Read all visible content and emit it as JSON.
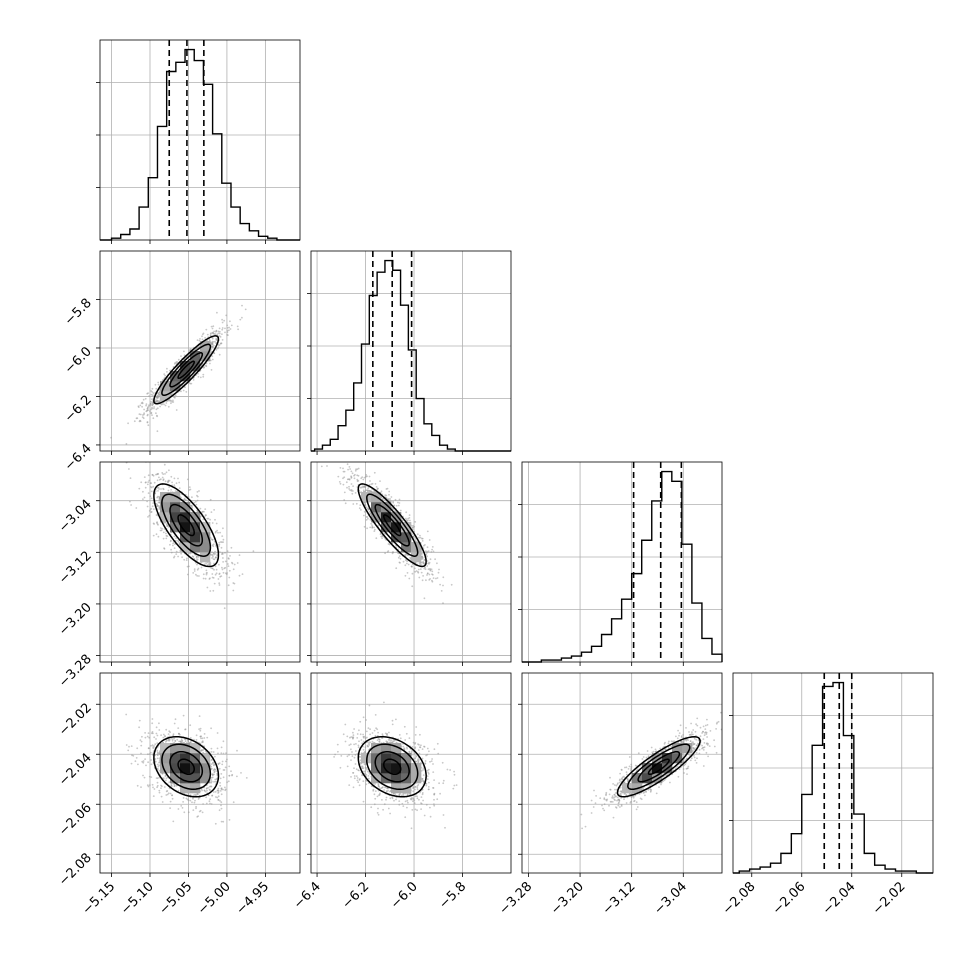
{
  "chart_data": {
    "type": "corner",
    "title": "",
    "grid": true,
    "parameters": [
      {
        "range": [
          -5.165,
          -4.905
        ],
        "ticks": [
          -5.15,
          -5.1,
          -5.05,
          -5.0,
          -4.95
        ],
        "tick_labels": [
          "−5.15",
          "−5.10",
          "−5.05",
          "−5.00",
          "−4.95"
        ],
        "mean": -5.053,
        "sd": 0.021,
        "quantiles": [
          -5.075,
          -5.052,
          -5.03
        ],
        "hist_range": [
          -5.15,
          -4.935
        ],
        "hist_counts": [
          1,
          3,
          6,
          18,
          34,
          62,
          92,
          97,
          104,
          98,
          85,
          58,
          31,
          18,
          9,
          5,
          2,
          1
        ]
      },
      {
        "range": [
          -6.425,
          -5.6
        ],
        "ticks": [
          -6.4,
          -6.2,
          -6.0,
          -5.8
        ],
        "tick_labels": [
          "−6.4",
          "−6.2",
          "−6.0",
          "−5.8"
        ],
        "mean": -6.09,
        "sd": 0.07,
        "quantiles": [
          -6.17,
          -6.09,
          -6.01
        ],
        "hist_range": [
          -6.41,
          -5.83
        ],
        "hist_counts": [
          1,
          3,
          6,
          13,
          21,
          35,
          55,
          80,
          92,
          98,
          93,
          75,
          52,
          27,
          14,
          8,
          3,
          1
        ]
      },
      {
        "range": [
          -3.29,
          -2.98
        ],
        "ticks": [
          -3.28,
          -3.2,
          -3.12,
          -3.04
        ],
        "tick_labels": [
          "−3.28",
          "−3.20",
          "−3.12",
          "−3.04"
        ],
        "mean": -3.078,
        "sd": 0.032,
        "quantiles": [
          -3.117,
          -3.075,
          -3.043
        ],
        "hist_range": [
          -3.26,
          -2.98
        ],
        "hist_counts": [
          1,
          1,
          2,
          3,
          5,
          8,
          14,
          22,
          32,
          45,
          62,
          82,
          97,
          92,
          60,
          30,
          12,
          4
        ]
      },
      {
        "range": [
          -2.0875,
          -2.0075
        ],
        "ticks": [
          -2.08,
          -2.06,
          -2.04,
          -2.02
        ],
        "tick_labels": [
          "−2.08",
          "−2.06",
          "−2.04",
          "−2.02"
        ],
        "mean": -2.045,
        "sd": 0.006,
        "quantiles": [
          -2.051,
          -2.045,
          -2.04
        ],
        "hist_range": [
          -2.085,
          -2.01
        ],
        "hist_counts": [
          1,
          2,
          3,
          5,
          10,
          20,
          40,
          65,
          95,
          97,
          70,
          30,
          10,
          4,
          2,
          1,
          1,
          0
        ]
      }
    ],
    "pairs": [
      {
        "x": 0,
        "y": 1,
        "rho": 0.91
      },
      {
        "x": 0,
        "y": 2,
        "rho": -0.72
      },
      {
        "x": 1,
        "y": 2,
        "rho": -0.88
      },
      {
        "x": 0,
        "y": 3,
        "rho": -0.3
      },
      {
        "x": 1,
        "y": 3,
        "rho": -0.3
      },
      {
        "x": 2,
        "y": 3,
        "rho": 0.86
      }
    ],
    "contour_levels_sigma": [
      0.5,
      1.0,
      1.5,
      2.0
    ]
  }
}
